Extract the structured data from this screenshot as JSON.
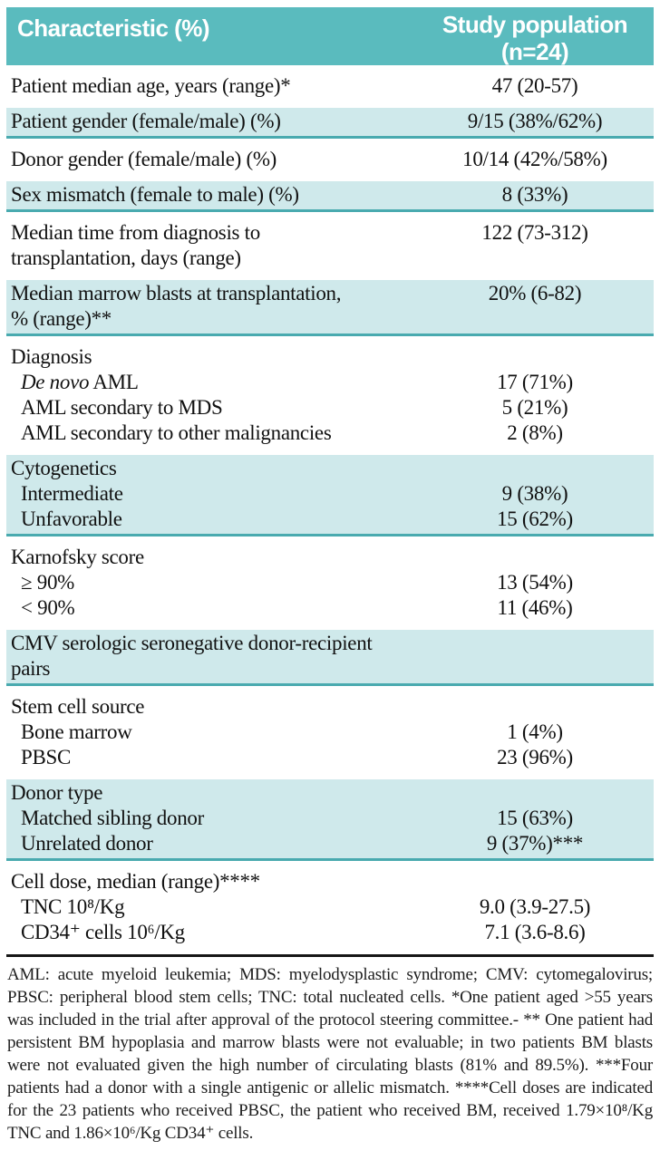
{
  "header": {
    "col1": "Characteristic (%)",
    "col2": "Study population\n(n=24)"
  },
  "table": {
    "sections": [
      {
        "shaded": false,
        "rows": [
          {
            "label": "Patient median age, years (range)*",
            "value": "47 (20-57)"
          }
        ]
      },
      {
        "shaded": true,
        "rows": [
          {
            "label": "Patient gender (female/male) (%)",
            "value": "9/15 (38%/62%)"
          }
        ]
      },
      {
        "shaded": false,
        "rows": [
          {
            "label": "Donor gender (female/male) (%)",
            "value": "10/14 (42%/58%)"
          }
        ]
      },
      {
        "shaded": true,
        "rows": [
          {
            "label": "Sex mismatch (female to male) (%)",
            "value": "8 (33%)"
          }
        ]
      },
      {
        "shaded": false,
        "rows": [
          {
            "label": "Median time from diagnosis to\ntransplantation, days (range)",
            "value": "122 (73-312)"
          }
        ]
      },
      {
        "shaded": true,
        "rows": [
          {
            "label": "Median marrow blasts at transplantation,\n% (range)**",
            "value": "20% (6-82)"
          }
        ]
      },
      {
        "shaded": false,
        "rows": [
          {
            "label": "Diagnosis",
            "value": ""
          },
          {
            "em": "De novo",
            "label": " AML",
            "value": "17 (71%)",
            "indent": true
          },
          {
            "label": "AML secondary to MDS",
            "value": "5 (21%)",
            "indent": true
          },
          {
            "label": "AML secondary to other malignancies",
            "value": "2 (8%)",
            "indent": true
          }
        ]
      },
      {
        "shaded": true,
        "rows": [
          {
            "label": "Cytogenetics",
            "value": ""
          },
          {
            "label": "Intermediate",
            "value": "9 (38%)",
            "indent": true
          },
          {
            "label": "Unfavorable",
            "value": "15 (62%)",
            "indent": true
          }
        ]
      },
      {
        "shaded": false,
        "rows": [
          {
            "label": "Karnofsky score",
            "value": ""
          },
          {
            "label": "≥ 90%",
            "value": "13 (54%)",
            "indent": true
          },
          {
            "label": "< 90%",
            "value": "11 (46%)",
            "indent": true
          }
        ]
      },
      {
        "shaded": true,
        "rows": [
          {
            "label": "CMV serologic seronegative donor-recipient pairs",
            "value": ""
          }
        ]
      },
      {
        "shaded": false,
        "rows": [
          {
            "label": "Stem cell source",
            "value": ""
          },
          {
            "label": "Bone marrow",
            "value": "1 (4%)",
            "indent": true
          },
          {
            "label": "PBSC",
            "value": "23 (96%)",
            "indent": true
          }
        ]
      },
      {
        "shaded": true,
        "rows": [
          {
            "label": "Donor type",
            "value": ""
          },
          {
            "label": "Matched sibling donor",
            "value": "15 (63%)",
            "indent": true
          },
          {
            "label": "Unrelated donor",
            "value": "9 (37%)***",
            "indent": true
          }
        ]
      },
      {
        "shaded": false,
        "rows": [
          {
            "label": "Cell dose, median (range)****",
            "value": ""
          },
          {
            "label": "TNC 10⁸/Kg",
            "value": "9.0 (3.9-27.5)",
            "indent": true
          },
          {
            "label": "CD34⁺ cells 10⁶/Kg",
            "value": "7.1 (3.6-8.6)",
            "indent": true
          }
        ]
      }
    ]
  },
  "footnote": "AML: acute myeloid leukemia; MDS: myelodysplastic syndrome; CMV: cytomegalovirus; PBSC: peripheral blood stem cells; TNC: total nucleated cells. *One patient aged >55 years was included in the trial after approval of the protocol steering committee.- ** One patient had persistent BM hypoplasia and marrow blasts were not evaluable; in two patients BM blasts were not evaluated given the high number of circulating blasts (81% and 89.5%). ***Four patients had a donor with a single antigenic or allelic mismatch. ****Cell doses are indicated for the 23 patients who received PBSC, the patient who received BM, received 1.79×10⁸/Kg TNC and 1.86×10⁶/Kg CD34⁺ cells.",
  "colors": {
    "header_bg": "#5ABBBE",
    "shaded_row_bg": "#CFE9EB",
    "shaded_row_divider": "#49AAAF",
    "table_bottom_rule": "#161616",
    "header_text": "#ffffff",
    "body_text": "#111111"
  }
}
